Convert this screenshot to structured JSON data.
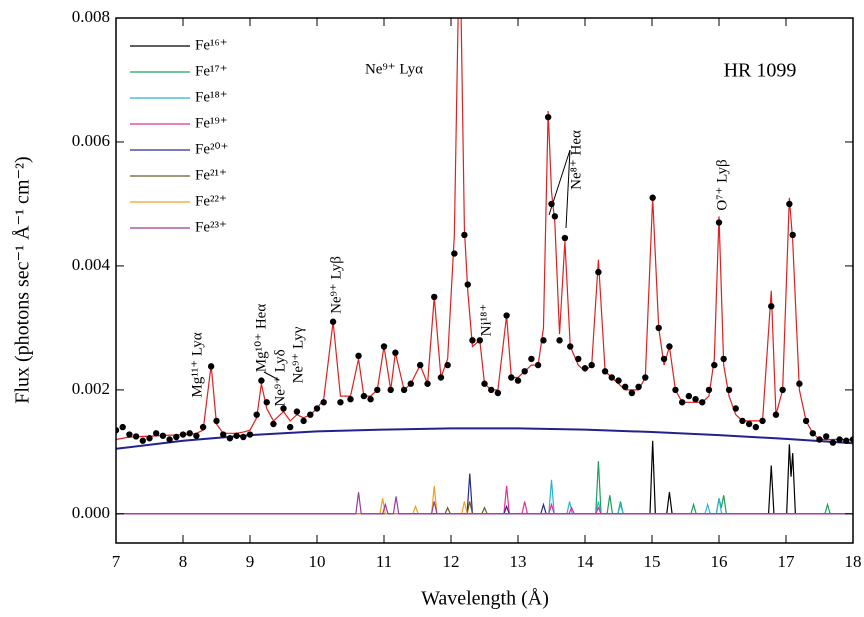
{
  "chart_data": {
    "type": "spectrum",
    "title": "HR 1099",
    "x_label": "Wavelength (Å)",
    "y_label": "Flux (photons sec⁻¹ Å⁻¹ cm⁻²)",
    "xlim": [
      7,
      18
    ],
    "ylim": [
      -0.00047,
      0.008
    ],
    "xticks": [
      7,
      8,
      9,
      10,
      11,
      12,
      13,
      14,
      15,
      16,
      17,
      18
    ],
    "yticks": [
      {
        "value": 0,
        "label": "0.000"
      },
      {
        "value": 0.002,
        "label": "0.002"
      },
      {
        "value": 0.004,
        "label": "0.004"
      },
      {
        "value": 0.006,
        "label": "0.006"
      },
      {
        "value": 0.008,
        "label": "0.008"
      }
    ],
    "annotations": [
      "Ne⁹⁺ Lyα",
      "Mg¹¹⁺ Lyα",
      "Mg¹⁰⁺ Heα",
      "Ne⁹⁺ Lyδ",
      "Ne⁹⁺ Lyγ",
      "Ne⁹⁺ Lyβ",
      "Ni¹⁸⁺",
      "Ne⁸⁺ Heα",
      "O⁷⁺ Lyβ"
    ],
    "x": [
      7.0,
      7.1,
      7.2,
      7.3,
      7.4,
      7.5,
      7.6,
      7.7,
      7.8,
      7.9,
      8.0,
      8.1,
      8.2,
      8.3,
      8.42,
      8.5,
      8.6,
      8.7,
      8.8,
      8.9,
      9.0,
      9.1,
      9.17,
      9.25,
      9.35,
      9.5,
      9.6,
      9.7,
      9.8,
      9.9,
      10.0,
      10.1,
      10.24,
      10.35,
      10.5,
      10.62,
      10.7,
      10.8,
      10.9,
      11.0,
      11.1,
      11.17,
      11.3,
      11.4,
      11.54,
      11.65,
      11.75,
      11.85,
      11.95,
      12.05,
      12.13,
      12.2,
      12.25,
      12.32,
      12.43,
      12.5,
      12.6,
      12.7,
      12.83,
      12.9,
      13.0,
      13.1,
      13.2,
      13.3,
      13.38,
      13.45,
      13.5,
      13.55,
      13.62,
      13.7,
      13.78,
      13.9,
      14.0,
      14.1,
      14.2,
      14.3,
      14.4,
      14.5,
      14.6,
      14.7,
      14.8,
      14.9,
      15.01,
      15.1,
      15.18,
      15.26,
      15.35,
      15.45,
      15.55,
      15.65,
      15.75,
      15.85,
      15.93,
      16.0,
      16.07,
      16.15,
      16.25,
      16.35,
      16.45,
      16.55,
      16.65,
      16.78,
      16.85,
      16.95,
      17.05,
      17.1,
      17.2,
      17.3,
      17.4,
      17.5,
      17.6,
      17.7,
      17.8,
      17.9,
      18.0
    ],
    "observed": {
      "color": "#000000",
      "values": [
        0.00135,
        0.0014,
        0.00128,
        0.00125,
        0.00118,
        0.00122,
        0.0013,
        0.00126,
        0.0012,
        0.00124,
        0.00128,
        0.0013,
        0.00126,
        0.0014,
        0.00238,
        0.0015,
        0.00128,
        0.00122,
        0.00126,
        0.00124,
        0.00128,
        0.0016,
        0.00215,
        0.0018,
        0.00145,
        0.0017,
        0.0014,
        0.00165,
        0.0015,
        0.0016,
        0.0017,
        0.0018,
        0.0031,
        0.0018,
        0.00185,
        0.00255,
        0.0019,
        0.00185,
        0.002,
        0.0027,
        0.002,
        0.0026,
        0.002,
        0.0021,
        0.0024,
        0.0021,
        0.0035,
        0.0022,
        0.0024,
        0.0042,
        0.009,
        0.0045,
        0.0037,
        0.0028,
        0.0028,
        0.0021,
        0.002,
        0.00195,
        0.0032,
        0.0022,
        0.00215,
        0.0023,
        0.0025,
        0.0024,
        0.0028,
        0.0064,
        0.005,
        0.0048,
        0.0028,
        0.00445,
        0.0027,
        0.0025,
        0.00235,
        0.0024,
        0.0039,
        0.0023,
        0.0022,
        0.00215,
        0.00205,
        0.00195,
        0.00205,
        0.0022,
        0.0051,
        0.003,
        0.0025,
        0.0027,
        0.002,
        0.0018,
        0.0019,
        0.00185,
        0.0018,
        0.002,
        0.0024,
        0.0047,
        0.0025,
        0.002,
        0.0017,
        0.0015,
        0.00145,
        0.0014,
        0.0015,
        0.00335,
        0.0016,
        0.002,
        0.005,
        0.0045,
        0.0021,
        0.0015,
        0.0013,
        0.0012,
        0.00125,
        0.00115,
        0.0012,
        0.00118,
        0.0012
      ]
    },
    "model": {
      "color": "#e02020",
      "values": [
        0.0012,
        0.00122,
        0.00124,
        0.00124,
        0.00125,
        0.00125,
        0.00126,
        0.00126,
        0.00127,
        0.00127,
        0.00128,
        0.00128,
        0.0013,
        0.00135,
        0.0024,
        0.00145,
        0.0013,
        0.0013,
        0.0013,
        0.00132,
        0.00135,
        0.00155,
        0.0021,
        0.0017,
        0.0015,
        0.00165,
        0.0015,
        0.0016,
        0.00155,
        0.0016,
        0.0017,
        0.00185,
        0.0031,
        0.0019,
        0.0019,
        0.0025,
        0.0019,
        0.0019,
        0.002,
        0.0027,
        0.002,
        0.0026,
        0.002,
        0.0021,
        0.0024,
        0.0021,
        0.0035,
        0.0022,
        0.0025,
        0.0045,
        0.0095,
        0.0046,
        0.0036,
        0.0027,
        0.0028,
        0.0021,
        0.002,
        0.002,
        0.0032,
        0.0022,
        0.0022,
        0.0023,
        0.0024,
        0.0024,
        0.003,
        0.0065,
        0.0052,
        0.0047,
        0.0029,
        0.0044,
        0.0027,
        0.0024,
        0.0023,
        0.0024,
        0.0041,
        0.0023,
        0.0022,
        0.0021,
        0.002,
        0.002,
        0.002,
        0.0022,
        0.0051,
        0.003,
        0.0024,
        0.0027,
        0.002,
        0.0018,
        0.0018,
        0.0018,
        0.0018,
        0.0019,
        0.0025,
        0.0048,
        0.0024,
        0.0019,
        0.0016,
        0.0015,
        0.0015,
        0.0015,
        0.0015,
        0.0036,
        0.0016,
        0.002,
        0.0051,
        0.0044,
        0.002,
        0.0015,
        0.0013,
        0.0012,
        0.0012,
        0.0012,
        0.0012,
        0.0012,
        0.0012
      ]
    },
    "continuum": {
      "color": "#22228a",
      "x": [
        7,
        8,
        9,
        10,
        11,
        12,
        13,
        14,
        15,
        16,
        17,
        18
      ],
      "values": [
        0.00105,
        0.00118,
        0.00127,
        0.00133,
        0.00136,
        0.00138,
        0.00138,
        0.00136,
        0.00132,
        0.00127,
        0.00121,
        0.00114
      ]
    },
    "series": [
      {
        "name": "Fe¹⁶⁺",
        "color": "#000000",
        "x": [
          7,
          14.97,
          15.01,
          15.05,
          15.22,
          15.26,
          15.3,
          16.74,
          16.78,
          16.82,
          17.01,
          17.05,
          17.075,
          17.1,
          17.14,
          18
        ],
        "values": [
          0,
          0,
          0.00118,
          0,
          0,
          0.00035,
          0,
          0,
          0.00078,
          0,
          0,
          0.00112,
          0.0006,
          0.00098,
          0,
          0
        ]
      },
      {
        "name": "Fe¹⁷⁺",
        "color": "#1aa05a",
        "x": [
          7,
          14.16,
          14.2,
          14.24,
          14.33,
          14.37,
          14.41,
          14.49,
          14.53,
          14.57,
          15.58,
          15.62,
          15.66,
          15.96,
          16.0,
          16.035,
          16.07,
          16.11,
          17.58,
          17.62,
          17.66,
          18
        ],
        "values": [
          0,
          0,
          0.00085,
          0,
          0,
          0.0003,
          0,
          0,
          0.0002,
          0,
          0,
          0.00015,
          0,
          0,
          0.00025,
          0.0001,
          0.0003,
          0,
          0,
          0.00015,
          0,
          0
        ]
      },
      {
        "name": "Fe¹⁸⁺",
        "color": "#2ab5d0",
        "x": [
          7,
          13.46,
          13.5,
          13.54,
          13.73,
          13.77,
          13.81,
          14.16,
          14.2,
          14.24,
          14.49,
          14.53,
          14.57,
          15.79,
          15.83,
          15.87,
          15.96,
          16.0,
          16.04,
          18
        ],
        "values": [
          0,
          0,
          0.00055,
          0,
          0,
          0.0002,
          0,
          0,
          0.0002,
          0,
          0,
          0.00015,
          0,
          0,
          0.00015,
          0,
          0,
          0.00025,
          0,
          0
        ]
      },
      {
        "name": "Fe¹⁹⁺",
        "color": "#e0309a",
        "x": [
          7,
          12.79,
          12.83,
          12.87,
          13.06,
          13.1,
          13.14,
          13.46,
          13.5,
          13.54,
          13.76,
          13.8,
          13.84,
          14.16,
          14.2,
          14.24,
          18
        ],
        "values": [
          0,
          0,
          0.00045,
          0,
          0,
          0.0002,
          0,
          0,
          0.00015,
          0,
          0,
          0.0001,
          0,
          0,
          0.0001,
          0,
          0
        ]
      },
      {
        "name": "Fe²⁰⁺",
        "color": "#2a2a8a",
        "x": [
          7,
          12.24,
          12.28,
          12.32,
          12.79,
          12.83,
          12.87,
          13.34,
          13.38,
          13.42,
          18
        ],
        "values": [
          0,
          0,
          0.00065,
          0,
          0,
          0.00012,
          0,
          0,
          0.00015,
          0,
          0
        ]
      },
      {
        "name": "Fe²¹⁺",
        "color": "#6b5a2a",
        "x": [
          7,
          11.91,
          11.95,
          11.99,
          12.24,
          12.28,
          12.32,
          12.46,
          12.5,
          12.54,
          18
        ],
        "values": [
          0,
          0,
          0.0001,
          0,
          0,
          0.0002,
          0,
          0,
          0.0001,
          0,
          0
        ]
      },
      {
        "name": "Fe²²⁺",
        "color": "#f0a020",
        "x": [
          7,
          10.94,
          10.98,
          11.02,
          11.43,
          11.47,
          11.51,
          11.71,
          11.75,
          11.79,
          12.16,
          12.2,
          12.24,
          18
        ],
        "values": [
          0,
          0,
          0.00025,
          0,
          0,
          0.00012,
          0,
          0,
          0.00045,
          0,
          0,
          0.0002,
          0,
          0
        ]
      },
      {
        "name": "Fe²³⁺",
        "color": "#9a3aa0",
        "x": [
          7,
          10.58,
          10.62,
          10.66,
          10.98,
          11.02,
          11.06,
          11.14,
          11.18,
          11.22,
          11.71,
          11.75,
          11.79,
          18
        ],
        "values": [
          0,
          0,
          0.00035,
          0,
          0,
          0.00015,
          0,
          0,
          0.00028,
          0,
          0,
          0.0002,
          0,
          0
        ]
      }
    ]
  }
}
